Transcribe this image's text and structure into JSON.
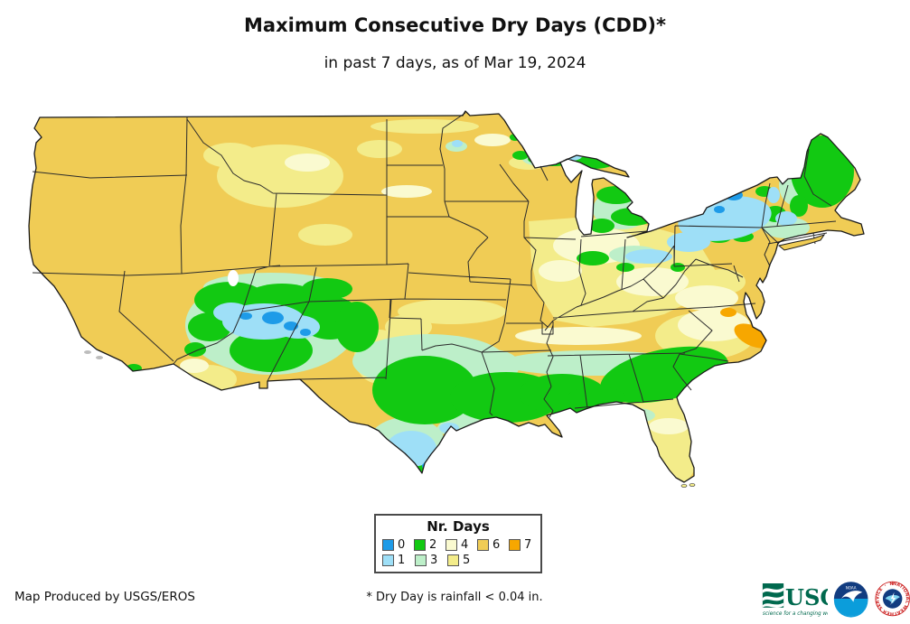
{
  "header": {
    "title": "Maximum Consecutive Dry Days (CDD)*",
    "subtitle": "in past 7 days, as of Mar 19, 2024"
  },
  "legend": {
    "title": "Nr. Days",
    "rows": [
      [
        {
          "label": "0",
          "color": "#1e9be8"
        },
        {
          "label": "2",
          "color": "#12c912"
        },
        {
          "label": "4",
          "color": "#fafad0"
        },
        {
          "label": "6",
          "color": "#f0cc55"
        },
        {
          "label": "7",
          "color": "#f7a700"
        }
      ],
      [
        {
          "label": "1",
          "color": "#9edff7"
        },
        {
          "label": "3",
          "color": "#bdefc9"
        },
        {
          "label": "5",
          "color": "#f3ec8a"
        }
      ]
    ]
  },
  "map": {
    "regions": [
      {
        "area": "Pacific Northwest, California, Great Basin, northern Plains",
        "dry_days": "6"
      },
      {
        "area": "Montana / Wyoming / Dakotas patches",
        "dry_days": "4-5"
      },
      {
        "area": "Four Corners (Arizona / New Mexico / S Colorado)",
        "dry_days": "0-2"
      },
      {
        "area": "Central and South Texas, Gulf Coast, Louisiana, S Mississippi / Alabama, Georgia",
        "dry_days": "1-2"
      },
      {
        "area": "Southern Plains (Oklahoma, N Texas, Arkansas)",
        "dry_days": "3"
      },
      {
        "area": "Ohio Valley, Tennessee, Carolinas interior",
        "dry_days": "4-5"
      },
      {
        "area": "Eastern North Carolina coast",
        "dry_days": "6-7"
      },
      {
        "area": "Upstate New York and northern New England",
        "dry_days": "0-2"
      },
      {
        "area": "Maine, Upper Michigan, Gulf band",
        "dry_days": "2"
      },
      {
        "area": "Florida peninsula",
        "dry_days": "4-6"
      }
    ]
  },
  "footer": {
    "credit": "Map Produced by USGS/EROS",
    "note": "* Dry Day is rainfall < 0.04 in."
  },
  "logos": {
    "usgs": {
      "name": "USGS",
      "tagline": "science for a changing world"
    },
    "noaa": {
      "name": "NOAA"
    },
    "nws": {
      "name": "NWS"
    }
  }
}
